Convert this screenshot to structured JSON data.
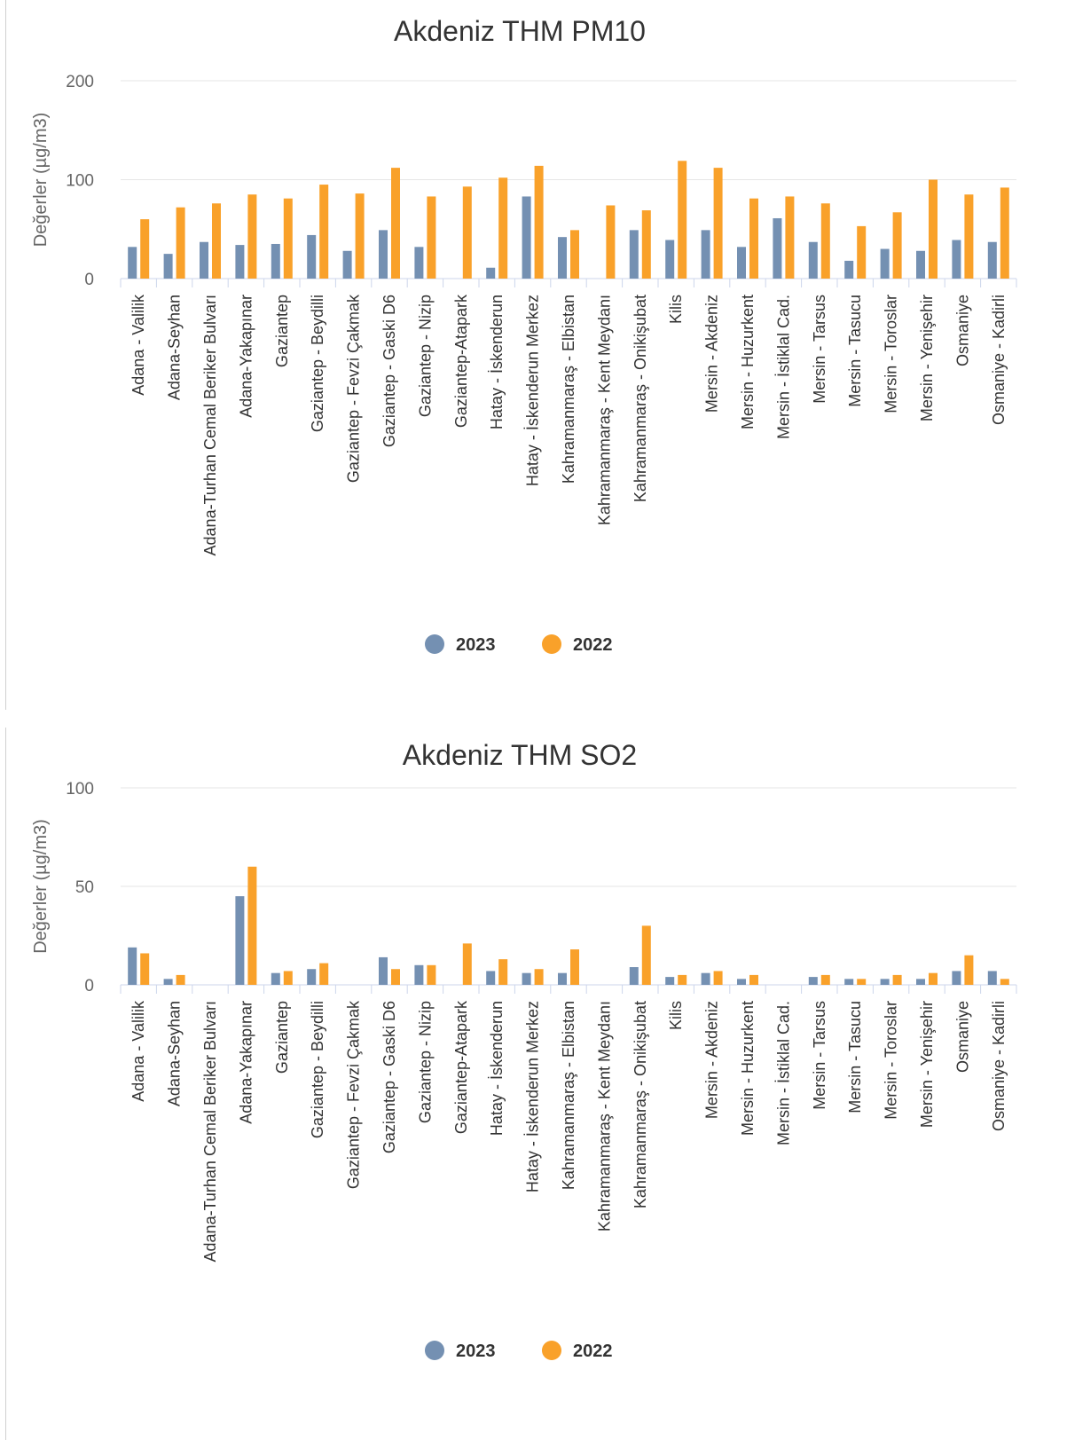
{
  "legend": {
    "items": [
      {
        "label": "2023",
        "color": "#7490b2"
      },
      {
        "label": "2022",
        "color": "#f9a12a"
      }
    ]
  },
  "chart_data": [
    {
      "type": "bar",
      "title": "Akdeniz THM PM10",
      "xlabel": "",
      "ylabel": "Değerler (µg/m3)",
      "ylim": [
        0,
        200
      ],
      "yticks": [
        "0",
        "100",
        "200"
      ],
      "grid": true,
      "legend_position": "bottom",
      "categories": [
        "Adana - Valilik",
        "Adana-Seyhan",
        "Adana-Turhan Cemal Beriker Bulvarı",
        "Adana-Yakapınar",
        "Gaziantep",
        "Gaziantep - Beydilli",
        "Gaziantep - Fevzi Çakmak",
        "Gaziantep - Gaski D6",
        "Gaziantep - Nizip",
        "Gaziantep-Atapark",
        "Hatay - İskenderun",
        "Hatay - İskenderun Merkez",
        "Kahramanmaraş - Elbistan",
        "Kahramanmaraş - Kent Meydanı",
        "Kahramanmaraş - Onikişubat",
        "Kilis",
        "Mersin - Akdeniz",
        "Mersin - Huzurkent",
        "Mersin - İstiklal Cad.",
        "Mersin - Tarsus",
        "Mersin - Tasucu",
        "Mersin - Toroslar",
        "Mersin - Yenişehir",
        "Osmaniye",
        "Osmaniye - Kadirli"
      ],
      "series": [
        {
          "name": "2023",
          "values": [
            32,
            25,
            37,
            34,
            35,
            44,
            28,
            49,
            32,
            null,
            11,
            83,
            42,
            null,
            49,
            39,
            49,
            32,
            61,
            37,
            18,
            30,
            28,
            39,
            37
          ]
        },
        {
          "name": "2022",
          "values": [
            60,
            72,
            76,
            85,
            81,
            95,
            86,
            112,
            83,
            93,
            102,
            114,
            49,
            74,
            69,
            119,
            112,
            81,
            83,
            76,
            53,
            67,
            100,
            85,
            92
          ]
        }
      ]
    },
    {
      "type": "bar",
      "title": "Akdeniz THM SO2",
      "xlabel": "",
      "ylabel": "Değerler (µg/m3)",
      "ylim": [
        0,
        100
      ],
      "yticks": [
        "0",
        "50",
        "100"
      ],
      "grid": true,
      "legend_position": "bottom",
      "categories": [
        "Adana - Valilik",
        "Adana-Seyhan",
        "Adana-Turhan Cemal Beriker Bulvarı",
        "Adana-Yakapınar",
        "Gaziantep",
        "Gaziantep - Beydilli",
        "Gaziantep - Fevzi Çakmak",
        "Gaziantep - Gaski D6",
        "Gaziantep - Nizip",
        "Gaziantep-Atapark",
        "Hatay - İskenderun",
        "Hatay - İskenderun Merkez",
        "Kahramanmaraş - Elbistan",
        "Kahramanmaraş - Kent Meydanı",
        "Kahramanmaraş - Onikişubat",
        "Kilis",
        "Mersin - Akdeniz",
        "Mersin - Huzurkent",
        "Mersin - İstiklal Cad.",
        "Mersin - Tarsus",
        "Mersin - Tasucu",
        "Mersin - Toroslar",
        "Mersin - Yenişehir",
        "Osmaniye",
        "Osmaniye - Kadirli"
      ],
      "series": [
        {
          "name": "2023",
          "values": [
            19,
            3,
            null,
            45,
            6,
            8,
            null,
            14,
            10,
            null,
            7,
            6,
            6,
            null,
            9,
            4,
            6,
            3,
            null,
            4,
            3,
            3,
            3,
            7,
            7
          ]
        },
        {
          "name": "2022",
          "values": [
            16,
            5,
            null,
            60,
            7,
            11,
            null,
            8,
            10,
            21,
            13,
            8,
            18,
            null,
            30,
            5,
            7,
            5,
            null,
            5,
            3,
            5,
            6,
            15,
            3
          ]
        }
      ]
    }
  ]
}
